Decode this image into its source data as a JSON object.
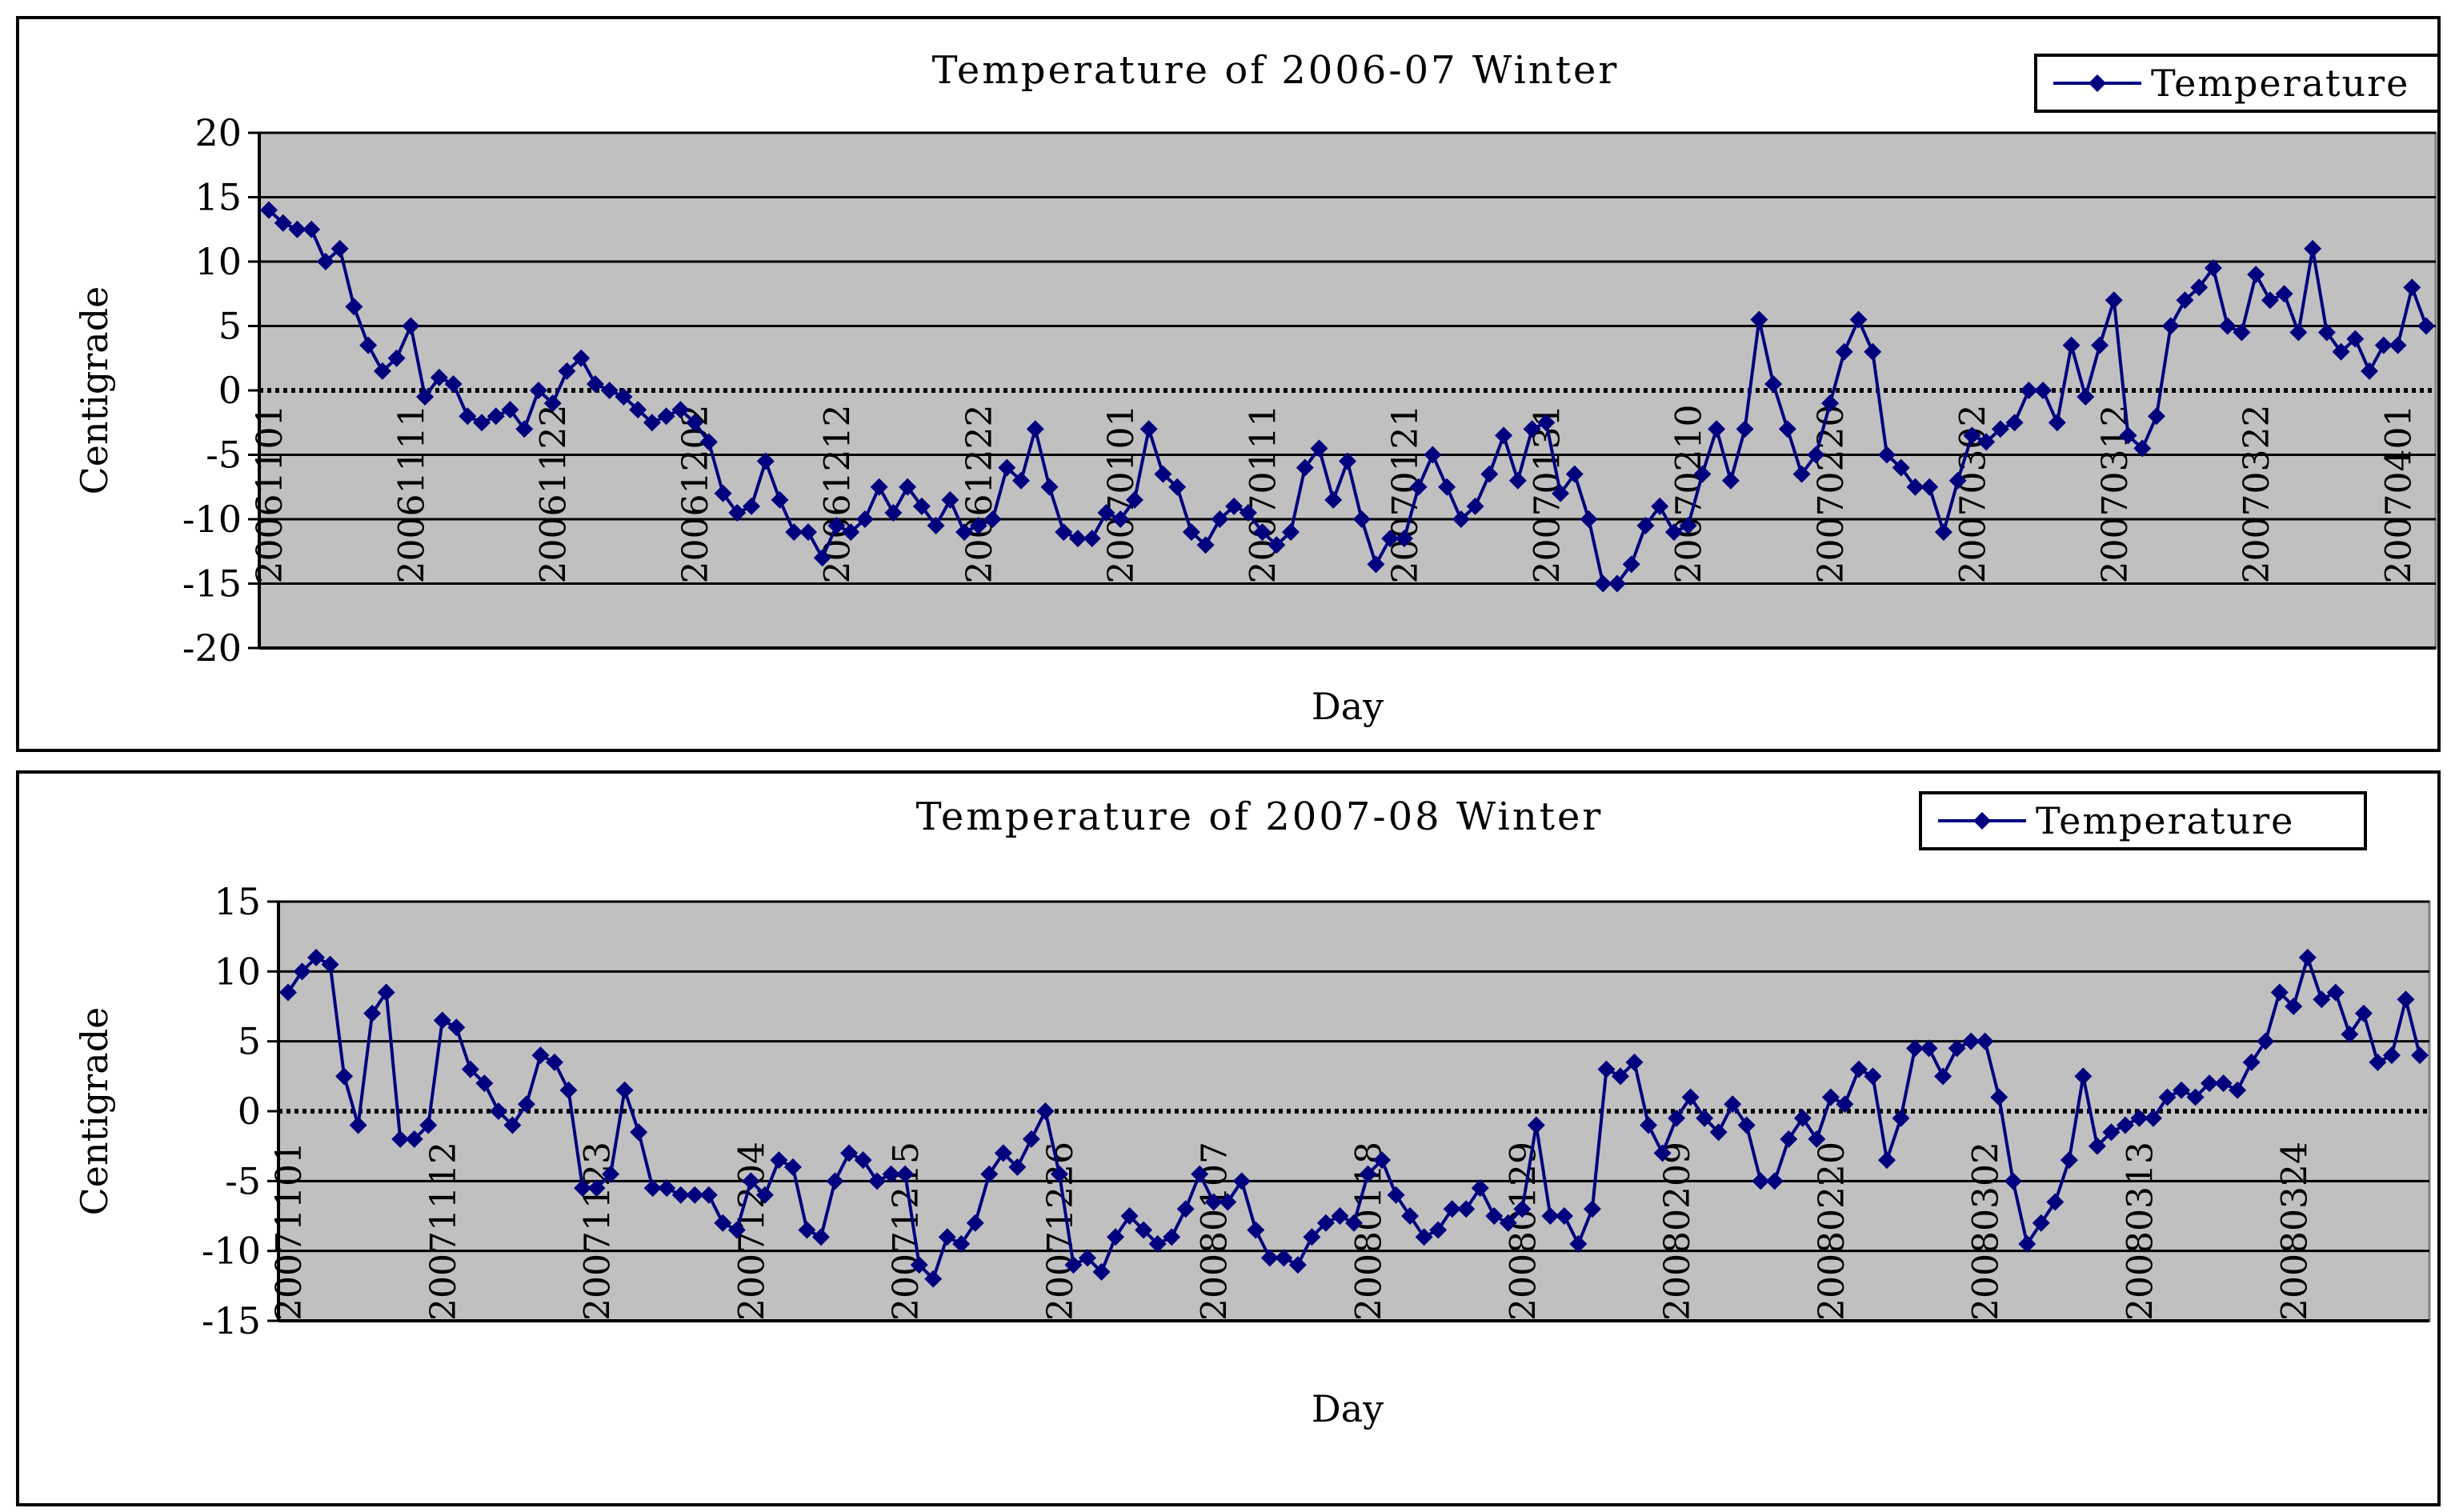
{
  "chart_data": [
    {
      "type": "line",
      "title": "Temperature of 2006-07 Winter",
      "xlabel": "Day",
      "ylabel": "Centigrade",
      "ylim": [
        -20,
        20
      ],
      "yticks": [
        20,
        15,
        10,
        5,
        0,
        -5,
        -10,
        -15,
        -20
      ],
      "grid": true,
      "zero_line": "dotted",
      "legend_position": "top-right",
      "colors": {
        "series": "#00007F",
        "plot_bg": "#C0C0C0"
      },
      "tick_labels": [
        "20061101",
        "20061111",
        "20061122",
        "20061202",
        "20061212",
        "20061222",
        "20070101",
        "20070111",
        "20070121",
        "20070131",
        "20070210",
        "20070220",
        "20070302",
        "20070312",
        "20070322",
        "20070401"
      ],
      "series": [
        {
          "name": "Temperature",
          "values": [
            14.0,
            13.0,
            12.5,
            12.5,
            10.0,
            11.0,
            6.5,
            3.5,
            1.5,
            2.5,
            5.0,
            -0.5,
            1.0,
            0.5,
            -2.0,
            -2.5,
            -2.0,
            -1.5,
            -3.0,
            0.0,
            -1.0,
            1.5,
            2.5,
            0.5,
            0.0,
            -0.5,
            -1.5,
            -2.5,
            -2.0,
            -1.5,
            -2.5,
            -4.0,
            -8.0,
            -9.5,
            -9.0,
            -5.5,
            -8.5,
            -11.0,
            -11.0,
            -13.0,
            -10.5,
            -11.0,
            -10.0,
            -7.5,
            -9.5,
            -7.5,
            -9.0,
            -10.5,
            -8.5,
            -11.0,
            -10.5,
            -10.0,
            -6.0,
            -7.0,
            -3.0,
            -7.5,
            -11.0,
            -11.5,
            -11.5,
            -9.5,
            -10.0,
            -8.5,
            -3.0,
            -6.5,
            -7.5,
            -11.0,
            -12.0,
            -10.0,
            -9.0,
            -9.5,
            -11.0,
            -12.0,
            -11.0,
            -6.0,
            -4.5,
            -8.5,
            -5.5,
            -10.0,
            -13.5,
            -11.5,
            -11.5,
            -7.5,
            -5.0,
            -7.5,
            -10.0,
            -9.0,
            -6.5,
            -3.5,
            -7.0,
            -3.0,
            -2.5,
            -8.0,
            -6.5,
            -10.0,
            -15.0,
            -15.0,
            -13.5,
            -10.5,
            -9.0,
            -11.0,
            -10.5,
            -6.5,
            -3.0,
            -7.0,
            -3.0,
            5.5,
            0.5,
            -3.0,
            -6.5,
            -5.0,
            -1.0,
            3.0,
            5.5,
            3.0,
            -5.0,
            -6.0,
            -7.5,
            -7.5,
            -11.0,
            -7.0,
            -3.5,
            -4.0,
            -3.0,
            -2.5,
            0.0,
            0.0,
            -2.5,
            3.5,
            -0.5,
            3.5,
            7.0,
            -3.5,
            -4.5,
            -2.0,
            5.0,
            7.0,
            8.0,
            9.5,
            5.0,
            4.5,
            9.0,
            7.0,
            7.5,
            4.5,
            11.0,
            4.5,
            3.0,
            4.0,
            1.5,
            3.5,
            3.5,
            8.0,
            5.0
          ]
        }
      ]
    },
    {
      "type": "line",
      "title": "Temperature of 2007-08 Winter",
      "xlabel": "Day",
      "ylabel": "Centigrade",
      "ylim": [
        -15,
        15
      ],
      "yticks": [
        15,
        10,
        5,
        0,
        -5,
        -10,
        -15
      ],
      "grid": true,
      "zero_line": "dotted",
      "legend_position": "top-right",
      "colors": {
        "series": "#00007F",
        "plot_bg": "#C0C0C0"
      },
      "tick_labels": [
        "20071101",
        "20071112",
        "20071123",
        "20071204",
        "20071215",
        "20071226",
        "20080107",
        "20080118",
        "20080129",
        "20080209",
        "20080220",
        "20080302",
        "20080313",
        "20080324"
      ],
      "series": [
        {
          "name": "Temperature",
          "values": [
            8.5,
            10.0,
            11.0,
            10.5,
            2.5,
            -1.0,
            7.0,
            8.5,
            -2.0,
            -2.0,
            -1.0,
            6.5,
            6.0,
            3.0,
            2.0,
            0.0,
            -1.0,
            0.5,
            4.0,
            3.5,
            1.5,
            -5.5,
            -5.5,
            -4.5,
            1.5,
            -1.5,
            -5.5,
            -5.5,
            -6.0,
            -6.0,
            -6.0,
            -8.0,
            -8.5,
            -5.0,
            -6.0,
            -3.5,
            -4.0,
            -8.5,
            -9.0,
            -5.0,
            -3.0,
            -3.5,
            -5.0,
            -4.5,
            -4.5,
            -11.0,
            -12.0,
            -9.0,
            -9.5,
            -8.0,
            -4.5,
            -3.0,
            -4.0,
            -2.0,
            0.0,
            -4.5,
            -11.0,
            -10.5,
            -11.5,
            -9.0,
            -7.5,
            -8.5,
            -9.5,
            -9.0,
            -7.0,
            -4.5,
            -6.5,
            -6.5,
            -5.0,
            -8.5,
            -10.5,
            -10.5,
            -11.0,
            -9.0,
            -8.0,
            -7.5,
            -8.0,
            -4.5,
            -3.5,
            -6.0,
            -7.5,
            -9.0,
            -8.5,
            -7.0,
            -7.0,
            -5.5,
            -7.5,
            -8.0,
            -7.0,
            -1.0,
            -7.5,
            -7.5,
            -9.5,
            -7.0,
            3.0,
            2.5,
            3.5,
            -1.0,
            -3.0,
            -0.5,
            1.0,
            -0.5,
            -1.5,
            0.5,
            -1.0,
            -5.0,
            -5.0,
            -2.0,
            -0.5,
            -2.0,
            1.0,
            0.5,
            3.0,
            2.5,
            -3.5,
            -0.5,
            4.5,
            4.5,
            2.5,
            4.5,
            5.0,
            5.0,
            1.0,
            -5.0,
            -9.5,
            -8.0,
            -6.5,
            -3.5,
            2.5,
            -2.5,
            -1.5,
            -1.0,
            -0.5,
            -0.5,
            1.0,
            1.5,
            1.0,
            2.0,
            2.0,
            1.5,
            3.5,
            5.0,
            8.5,
            7.5,
            11.0,
            8.0,
            8.5,
            5.5,
            7.0,
            3.5,
            4.0,
            8.0,
            4.0
          ]
        }
      ]
    }
  ]
}
